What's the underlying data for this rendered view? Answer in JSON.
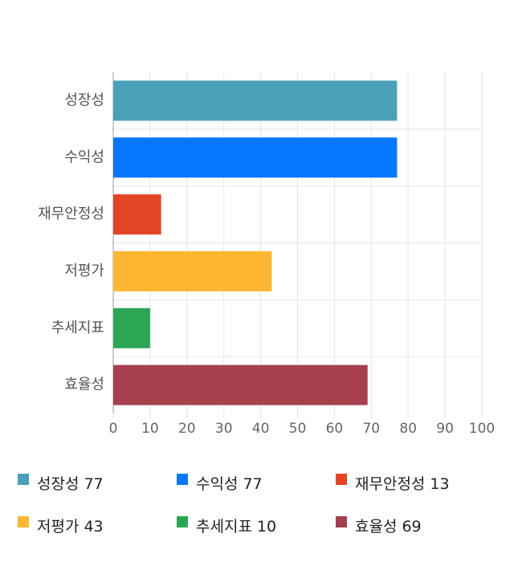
{
  "chart_data": {
    "type": "bar",
    "orientation": "horizontal",
    "categories": [
      "성장성",
      "수익성",
      "재무안정성",
      "저평가",
      "추세지표",
      "효율성"
    ],
    "values": [
      77,
      77,
      13,
      43,
      10,
      69
    ],
    "colors": [
      "#4aa0b8",
      "#0677fb",
      "#e34524",
      "#fdb732",
      "#2ca654",
      "#a6404f"
    ],
    "xlim": [
      0,
      100
    ],
    "xticks": [
      0,
      10,
      20,
      30,
      40,
      50,
      60,
      70,
      80,
      90,
      100
    ],
    "grid": true
  }
}
